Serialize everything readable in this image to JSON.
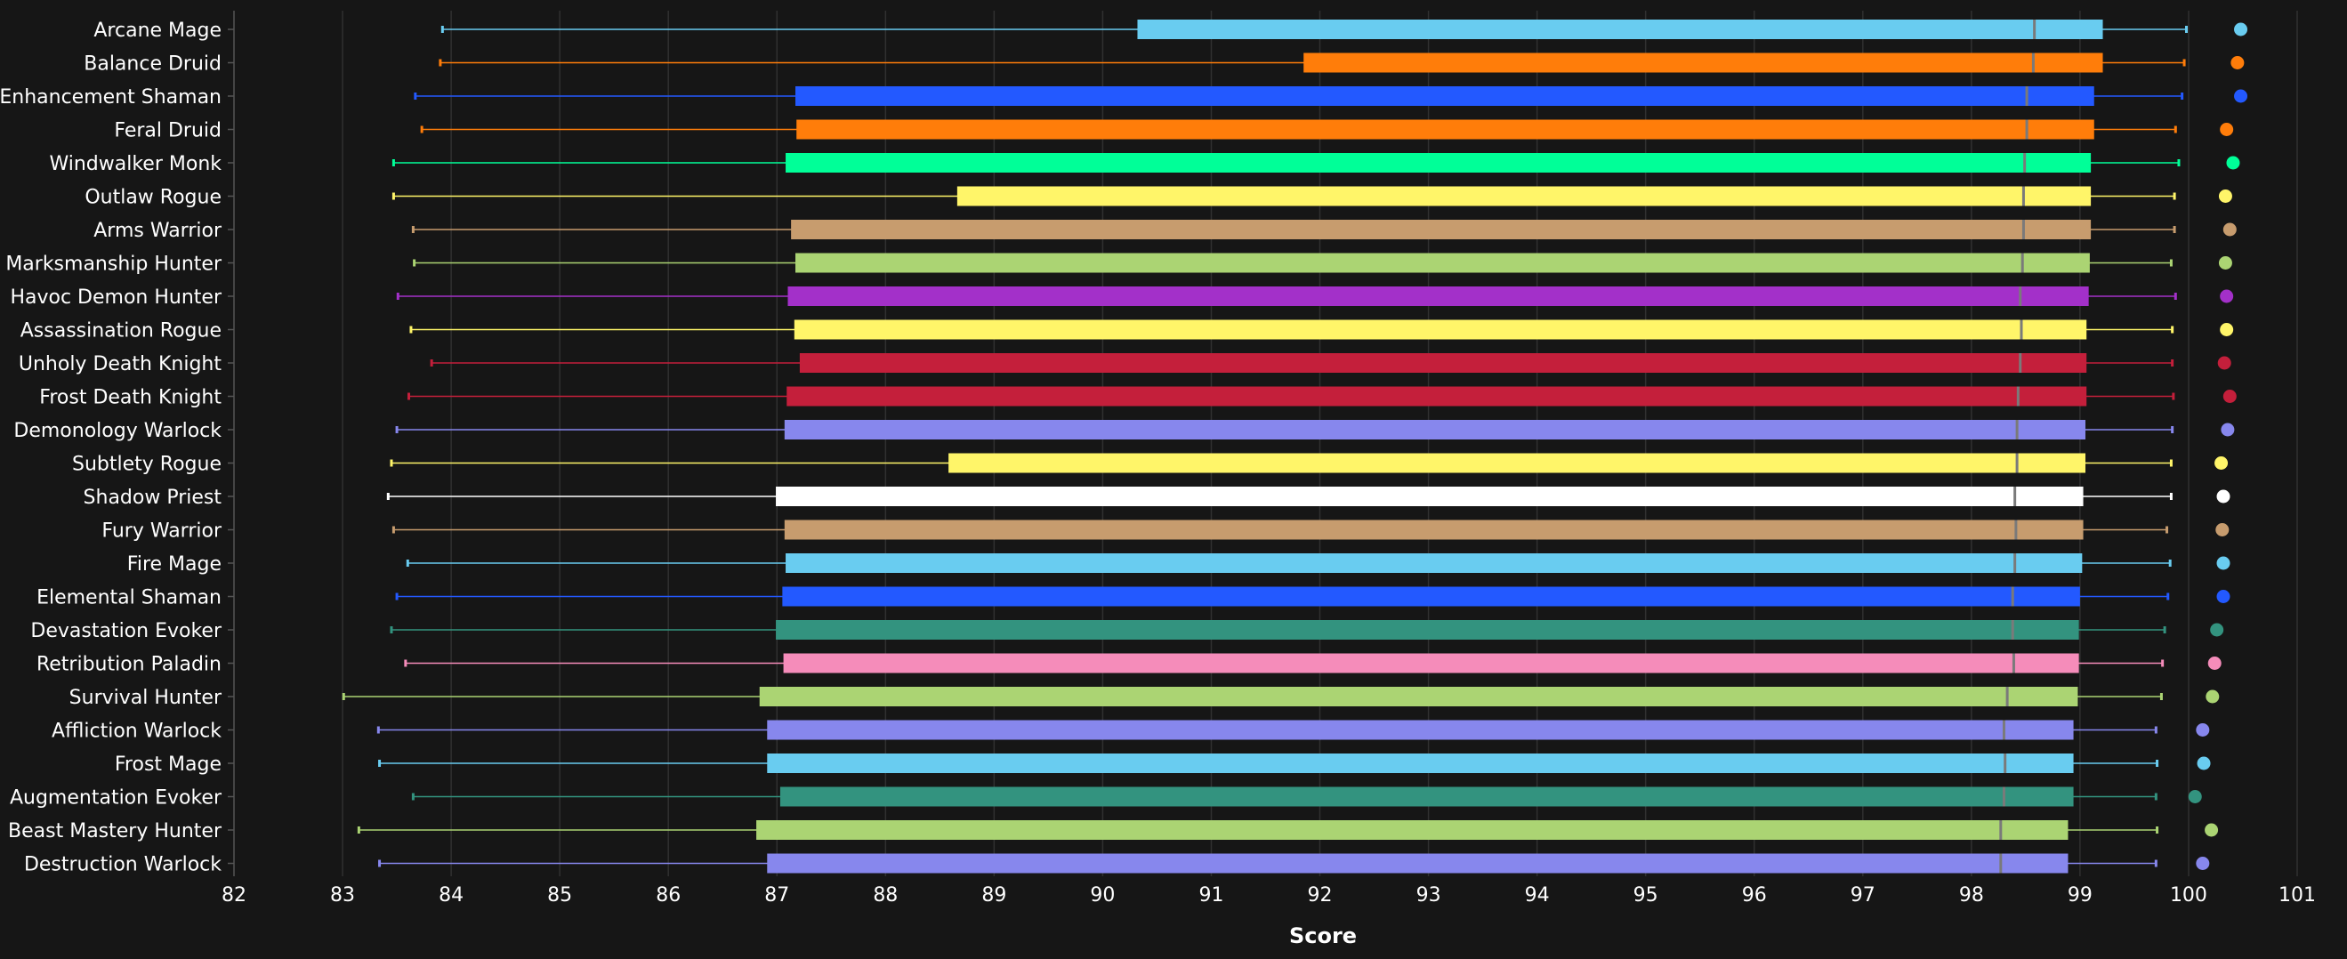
{
  "chart_data": {
    "type": "boxplot",
    "xlabel": "Score",
    "xlim": [
      82,
      101
    ],
    "xticks": [
      "82",
      "83",
      "84",
      "85",
      "86",
      "87",
      "88",
      "89",
      "90",
      "91",
      "92",
      "93",
      "94",
      "95",
      "96",
      "97",
      "98",
      "99",
      "100",
      "101"
    ],
    "grid": "vertical",
    "series": [
      {
        "name": "Arcane Mage",
        "color": "#69CCF0",
        "whisker_low": 83.92,
        "q1": 90.32,
        "median": 98.58,
        "q3": 99.21,
        "whisker_high": 99.98,
        "outlier": 100.48
      },
      {
        "name": "Balance Druid",
        "color": "#FF7D0A",
        "whisker_low": 83.9,
        "q1": 91.85,
        "median": 98.57,
        "q3": 99.21,
        "whisker_high": 99.96,
        "outlier": 100.45
      },
      {
        "name": "Enhancement Shaman",
        "color": "#2359FF",
        "whisker_low": 83.67,
        "q1": 87.17,
        "median": 98.51,
        "q3": 99.13,
        "whisker_high": 99.94,
        "outlier": 100.48
      },
      {
        "name": "Feral Druid",
        "color": "#FF7D0A",
        "whisker_low": 83.73,
        "q1": 87.18,
        "median": 98.51,
        "q3": 99.13,
        "whisker_high": 99.88,
        "outlier": 100.35
      },
      {
        "name": "Windwalker Monk",
        "color": "#00FF98",
        "whisker_low": 83.47,
        "q1": 87.08,
        "median": 98.49,
        "q3": 99.1,
        "whisker_high": 99.91,
        "outlier": 100.41
      },
      {
        "name": "Outlaw Rogue",
        "color": "#FFF569",
        "whisker_low": 83.47,
        "q1": 88.66,
        "median": 98.48,
        "q3": 99.1,
        "whisker_high": 99.87,
        "outlier": 100.34
      },
      {
        "name": "Arms Warrior",
        "color": "#C79C6E",
        "whisker_low": 83.65,
        "q1": 87.13,
        "median": 98.48,
        "q3": 99.1,
        "whisker_high": 99.87,
        "outlier": 100.38
      },
      {
        "name": "Marksmanship Hunter",
        "color": "#ABD473",
        "whisker_low": 83.66,
        "q1": 87.17,
        "median": 98.47,
        "q3": 99.09,
        "whisker_high": 99.84,
        "outlier": 100.34
      },
      {
        "name": "Havoc Demon Hunter",
        "color": "#A330C9",
        "whisker_low": 83.51,
        "q1": 87.1,
        "median": 98.45,
        "q3": 99.08,
        "whisker_high": 99.88,
        "outlier": 100.35
      },
      {
        "name": "Assassination Rogue",
        "color": "#FFF569",
        "whisker_low": 83.63,
        "q1": 87.16,
        "median": 98.46,
        "q3": 99.06,
        "whisker_high": 99.85,
        "outlier": 100.35
      },
      {
        "name": "Unholy Death Knight",
        "color": "#C41F3B",
        "whisker_low": 83.82,
        "q1": 87.21,
        "median": 98.45,
        "q3": 99.06,
        "whisker_high": 99.85,
        "outlier": 100.33
      },
      {
        "name": "Frost Death Knight",
        "color": "#C41F3B",
        "whisker_low": 83.61,
        "q1": 87.09,
        "median": 98.43,
        "q3": 99.06,
        "whisker_high": 99.86,
        "outlier": 100.38
      },
      {
        "name": "Demonology Warlock",
        "color": "#8787ED",
        "whisker_low": 83.5,
        "q1": 87.07,
        "median": 98.42,
        "q3": 99.05,
        "whisker_high": 99.85,
        "outlier": 100.36
      },
      {
        "name": "Subtlety Rogue",
        "color": "#FFF569",
        "whisker_low": 83.45,
        "q1": 88.58,
        "median": 98.42,
        "q3": 99.05,
        "whisker_high": 99.84,
        "outlier": 100.3
      },
      {
        "name": "Shadow Priest",
        "color": "#FFFFFF",
        "whisker_low": 83.42,
        "q1": 86.99,
        "median": 98.4,
        "q3": 99.03,
        "whisker_high": 99.84,
        "outlier": 100.32
      },
      {
        "name": "Fury Warrior",
        "color": "#C79C6E",
        "whisker_low": 83.47,
        "q1": 87.07,
        "median": 98.41,
        "q3": 99.03,
        "whisker_high": 99.8,
        "outlier": 100.31
      },
      {
        "name": "Fire Mage",
        "color": "#69CCF0",
        "whisker_low": 83.6,
        "q1": 87.08,
        "median": 98.4,
        "q3": 99.02,
        "whisker_high": 99.83,
        "outlier": 100.32
      },
      {
        "name": "Elemental Shaman",
        "color": "#2359FF",
        "whisker_low": 83.5,
        "q1": 87.05,
        "median": 98.38,
        "q3": 99.0,
        "whisker_high": 99.81,
        "outlier": 100.32
      },
      {
        "name": "Devastation Evoker",
        "color": "#33937F",
        "whisker_low": 83.45,
        "q1": 86.99,
        "median": 98.38,
        "q3": 98.99,
        "whisker_high": 99.78,
        "outlier": 100.26
      },
      {
        "name": "Retribution Paladin",
        "color": "#F58CBA",
        "whisker_low": 83.58,
        "q1": 87.06,
        "median": 98.39,
        "q3": 98.99,
        "whisker_high": 99.76,
        "outlier": 100.24
      },
      {
        "name": "Survival Hunter",
        "color": "#ABD473",
        "whisker_low": 83.01,
        "q1": 86.84,
        "median": 98.33,
        "q3": 98.98,
        "whisker_high": 99.75,
        "outlier": 100.22
      },
      {
        "name": "Affliction Warlock",
        "color": "#8787ED",
        "whisker_low": 83.33,
        "q1": 86.91,
        "median": 98.3,
        "q3": 98.94,
        "whisker_high": 99.7,
        "outlier": 100.13
      },
      {
        "name": "Frost Mage",
        "color": "#69CCF0",
        "whisker_low": 83.34,
        "q1": 86.91,
        "median": 98.31,
        "q3": 98.94,
        "whisker_high": 99.71,
        "outlier": 100.14
      },
      {
        "name": "Augmentation Evoker",
        "color": "#33937F",
        "whisker_low": 83.65,
        "q1": 87.03,
        "median": 98.3,
        "q3": 98.94,
        "whisker_high": 99.7,
        "outlier": 100.06
      },
      {
        "name": "Beast Mastery Hunter",
        "color": "#ABD473",
        "whisker_low": 83.15,
        "q1": 86.81,
        "median": 98.27,
        "q3": 98.89,
        "whisker_high": 99.71,
        "outlier": 100.21
      },
      {
        "name": "Destruction Warlock",
        "color": "#8787ED",
        "whisker_low": 83.34,
        "q1": 86.91,
        "median": 98.27,
        "q3": 98.89,
        "whisker_high": 99.7,
        "outlier": 100.13
      }
    ]
  }
}
